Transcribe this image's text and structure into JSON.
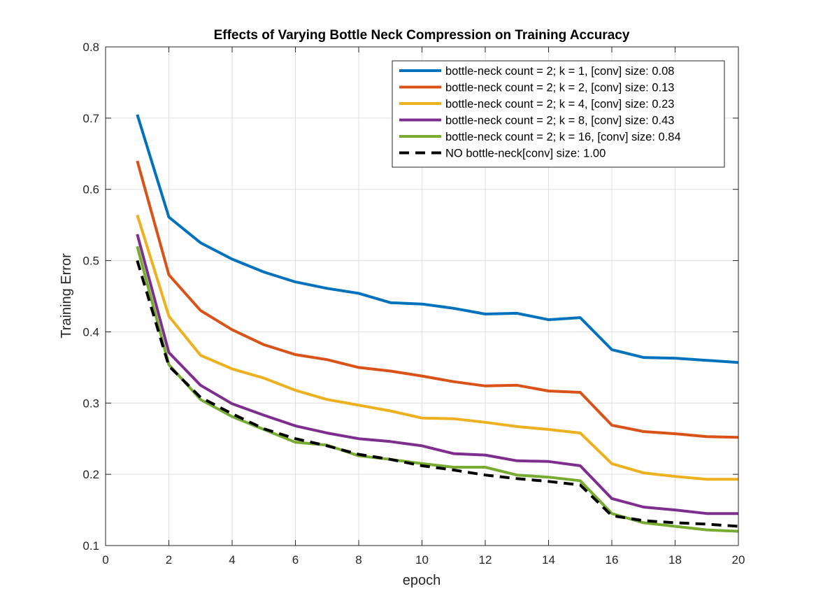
{
  "chart_data": {
    "type": "line",
    "title": "Effects of Varying Bottle Neck Compression on Training Accuracy",
    "xlabel": "epoch",
    "ylabel": "Training Error",
    "xlim": [
      0,
      20
    ],
    "ylim": [
      0.1,
      0.8
    ],
    "x_ticks": [
      0,
      2,
      4,
      6,
      8,
      10,
      12,
      14,
      16,
      18,
      20
    ],
    "y_ticks": [
      0.1,
      0.2,
      0.3,
      0.4,
      0.5,
      0.6,
      0.7,
      0.8
    ],
    "grid": true,
    "legend_position": "top-right",
    "x": [
      1,
      2,
      3,
      4,
      5,
      6,
      7,
      8,
      9,
      10,
      11,
      12,
      13,
      14,
      15,
      16,
      17,
      18,
      19,
      20
    ],
    "series": [
      {
        "name": "bottle-neck count = 2; k = 1, [conv] size: 0.08",
        "color": "#0072BD",
        "dash": "solid",
        "values": [
          0.705,
          0.561,
          0.525,
          0.502,
          0.484,
          0.47,
          0.461,
          0.454,
          0.441,
          0.439,
          0.433,
          0.425,
          0.426,
          0.417,
          0.42,
          0.375,
          0.364,
          0.363,
          0.36,
          0.357
        ]
      },
      {
        "name": "bottle-neck count = 2; k = 2, [conv] size: 0.13",
        "color": "#D95319",
        "dash": "solid",
        "values": [
          0.64,
          0.48,
          0.43,
          0.403,
          0.382,
          0.368,
          0.361,
          0.35,
          0.345,
          0.338,
          0.33,
          0.324,
          0.325,
          0.317,
          0.315,
          0.269,
          0.26,
          0.257,
          0.253,
          0.252
        ]
      },
      {
        "name": "bottle-neck count = 2; k = 4, [conv] size: 0.23",
        "color": "#EDB120",
        "dash": "solid",
        "values": [
          0.564,
          0.422,
          0.367,
          0.348,
          0.335,
          0.318,
          0.305,
          0.297,
          0.289,
          0.279,
          0.278,
          0.273,
          0.267,
          0.263,
          0.258,
          0.215,
          0.202,
          0.197,
          0.193,
          0.193
        ]
      },
      {
        "name": "bottle-neck count = 2; k = 8, [conv] size: 0.43",
        "color": "#7E2F8E",
        "dash": "solid",
        "values": [
          0.537,
          0.371,
          0.325,
          0.299,
          0.283,
          0.268,
          0.258,
          0.25,
          0.246,
          0.24,
          0.229,
          0.227,
          0.219,
          0.218,
          0.212,
          0.166,
          0.154,
          0.15,
          0.145,
          0.145
        ]
      },
      {
        "name": "bottle-neck count = 2; k = 16, [conv] size: 0.84",
        "color": "#77AC30",
        "dash": "solid",
        "values": [
          0.52,
          0.354,
          0.305,
          0.281,
          0.263,
          0.245,
          0.241,
          0.226,
          0.221,
          0.215,
          0.21,
          0.21,
          0.199,
          0.196,
          0.191,
          0.145,
          0.132,
          0.127,
          0.122,
          0.12
        ]
      },
      {
        "name": "NO bottle-neck[conv] size: 1.00",
        "color": "#000000",
        "dash": "dashed",
        "values": [
          0.5,
          0.352,
          0.308,
          0.285,
          0.264,
          0.25,
          0.24,
          0.228,
          0.221,
          0.212,
          0.206,
          0.199,
          0.194,
          0.19,
          0.185,
          0.142,
          0.135,
          0.132,
          0.13,
          0.127
        ]
      }
    ]
  }
}
